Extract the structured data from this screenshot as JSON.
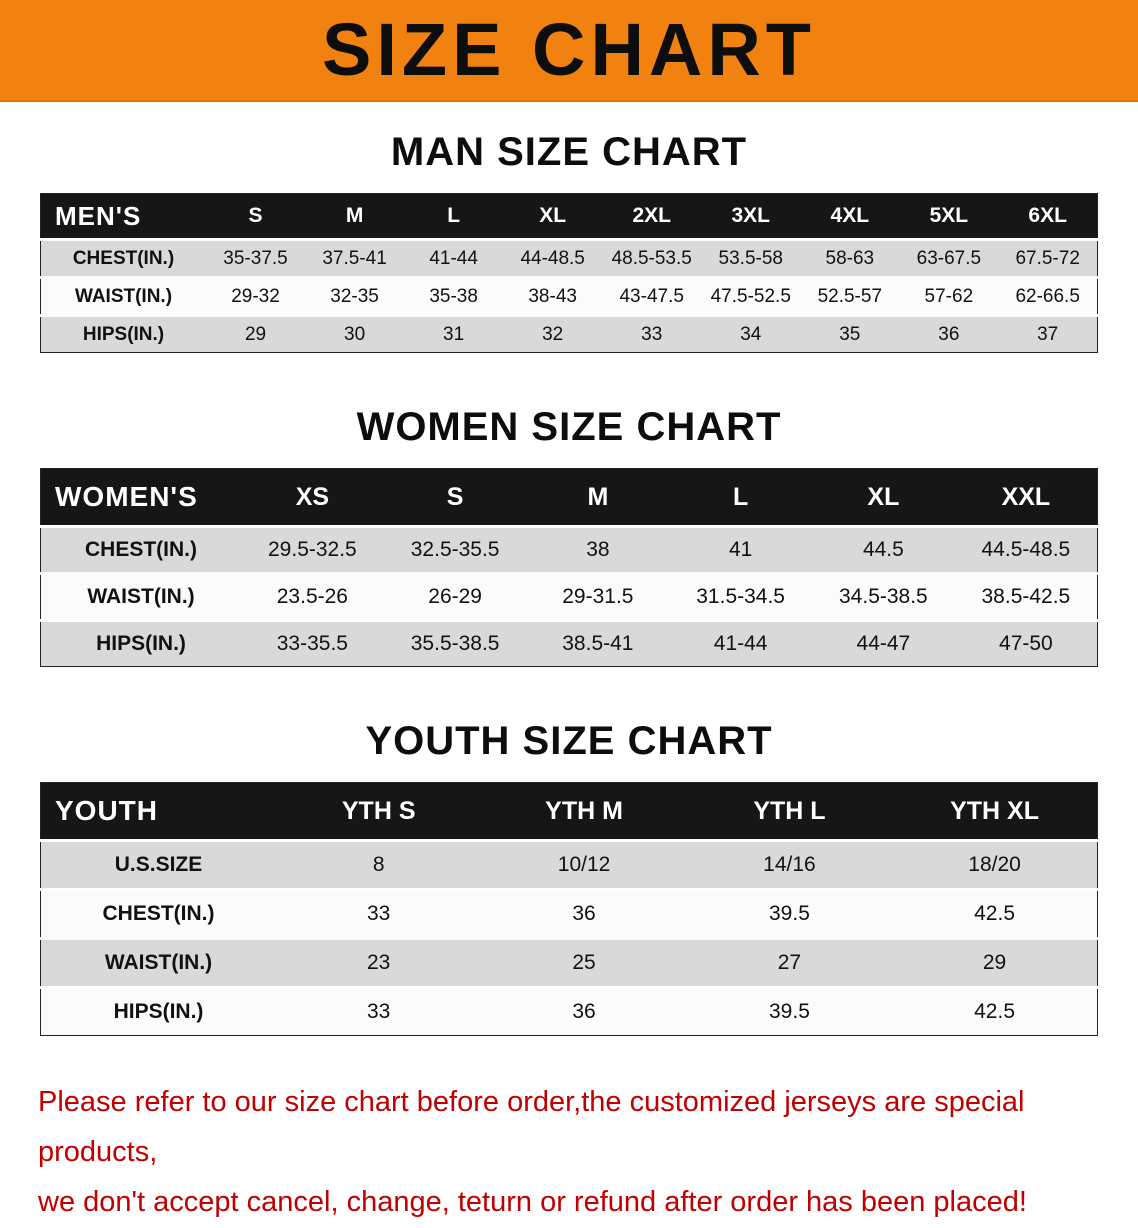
{
  "banner": {
    "title": "SIZE CHART",
    "bg_color": "#f1820f",
    "text_color": "#0d0d0d"
  },
  "sections": [
    {
      "heading": "MAN SIZE CHART",
      "table": {
        "corner": "MEN'S",
        "columns": [
          "S",
          "M",
          "L",
          "XL",
          "2XL",
          "3XL",
          "4XL",
          "5XL",
          "6XL"
        ],
        "rows": [
          {
            "label": "CHEST(IN.)",
            "values": [
              "35-37.5",
              "37.5-41",
              "41-44",
              "44-48.5",
              "48.5-53.5",
              "53.5-58",
              "58-63",
              "63-67.5",
              "67.5-72"
            ]
          },
          {
            "label": "WAIST(IN.)",
            "values": [
              "29-32",
              "32-35",
              "35-38",
              "38-43",
              "43-47.5",
              "47.5-52.5",
              "52.5-57",
              "57-62",
              "62-66.5"
            ]
          },
          {
            "label": "HIPS(IN.)",
            "values": [
              "29",
              "30",
              "31",
              "32",
              "33",
              "34",
              "35",
              "36",
              "37"
            ]
          }
        ]
      }
    },
    {
      "heading": "WOMEN SIZE CHART",
      "table": {
        "corner": "WOMEN'S",
        "columns": [
          "XS",
          "S",
          "M",
          "L",
          "XL",
          "XXL"
        ],
        "rows": [
          {
            "label": "CHEST(IN.)",
            "values": [
              "29.5-32.5",
              "32.5-35.5",
              "38",
              "41",
              "44.5",
              "44.5-48.5"
            ]
          },
          {
            "label": "WAIST(IN.)",
            "values": [
              "23.5-26",
              "26-29",
              "29-31.5",
              "31.5-34.5",
              "34.5-38.5",
              "38.5-42.5"
            ]
          },
          {
            "label": "HIPS(IN.)",
            "values": [
              "33-35.5",
              "35.5-38.5",
              "38.5-41",
              "41-44",
              "44-47",
              "47-50"
            ]
          }
        ]
      }
    },
    {
      "heading": "YOUTH SIZE CHART",
      "table": {
        "corner": "YOUTH",
        "columns": [
          "YTH S",
          "YTH M",
          "YTH L",
          "YTH XL"
        ],
        "rows": [
          {
            "label": "U.S.SIZE",
            "values": [
              "8",
              "10/12",
              "14/16",
              "18/20"
            ]
          },
          {
            "label": "CHEST(IN.)",
            "values": [
              "33",
              "36",
              "39.5",
              "42.5"
            ]
          },
          {
            "label": "WAIST(IN.)",
            "values": [
              "23",
              "25",
              "27",
              "29"
            ]
          },
          {
            "label": "HIPS(IN.)",
            "values": [
              "33",
              "36",
              "39.5",
              "42.5"
            ]
          }
        ]
      }
    }
  ],
  "footer": {
    "line1": "Please refer to our size chart before order,the customized jerseys are special products,",
    "line2": "we don't accept cancel, change, teturn or refund after order has been placed!",
    "text_color": "#c00000"
  }
}
